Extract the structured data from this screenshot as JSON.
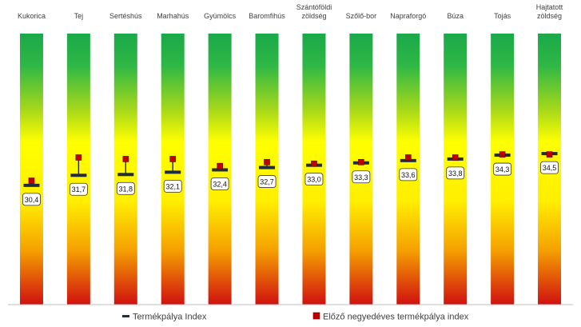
{
  "chart_data": {
    "type": "bar",
    "categories": [
      "Kukorica",
      "Tej",
      "Sertéshús",
      "Marhahús",
      "Gyümölcs",
      "Baromfihús",
      "Szántóföldi zöldség",
      "Szőlő-bor",
      "Napraforgó",
      "Búza",
      "Tojás",
      "Hajtatott zöldség"
    ],
    "series": [
      {
        "name": "Termékpálya Index",
        "values": [
          30.4,
          31.7,
          31.8,
          32.1,
          32.4,
          32.7,
          33.0,
          33.3,
          33.6,
          33.8,
          34.3,
          34.5
        ]
      },
      {
        "name": "Előző negyedéves termékpálya index",
        "values": [
          31.0,
          34.0,
          33.8,
          33.8,
          32.9,
          33.4,
          33.2,
          33.4,
          34.0,
          34.0,
          34.4,
          34.4
        ]
      }
    ],
    "value_labels": [
      "30,4",
      "31,7",
      "31,8",
      "32,1",
      "32,4",
      "32,7",
      "33,0",
      "33,3",
      "33,6",
      "33,8",
      "34,3",
      "34,5"
    ],
    "ylim": [
      15,
      50
    ],
    "grid": false,
    "legend_position": "bottom",
    "colors": {
      "top": "#1aa84a",
      "middle": "#ffff00",
      "bottom": "#d01010",
      "marker": "#c00000",
      "index_bar": "#1f2d3d"
    }
  }
}
